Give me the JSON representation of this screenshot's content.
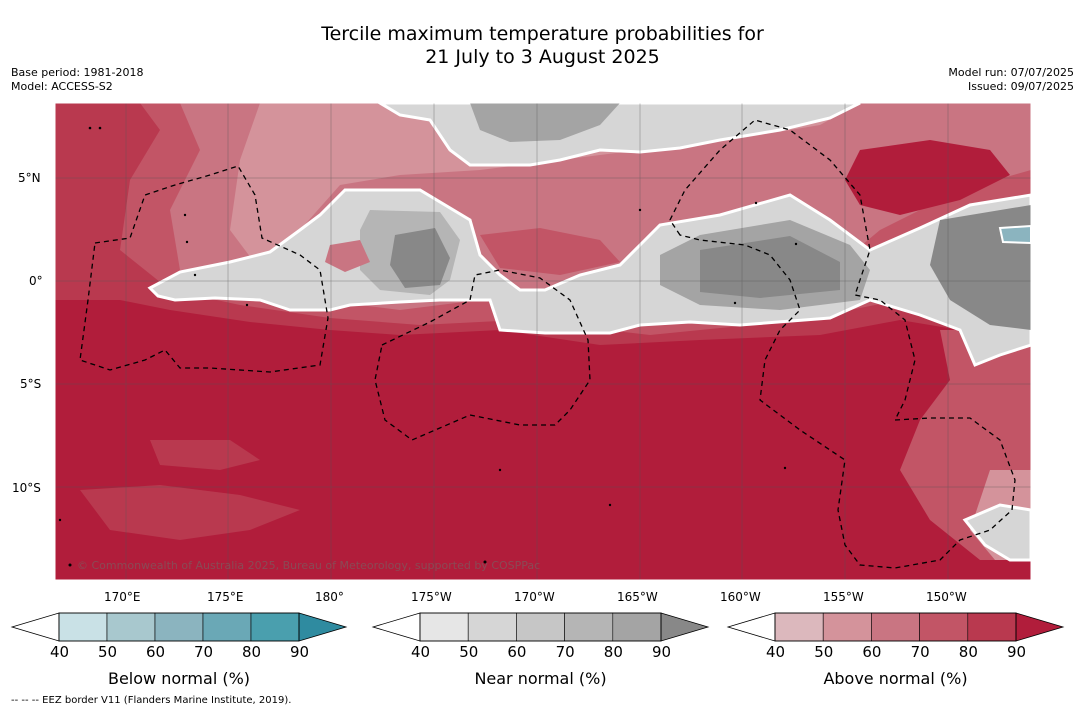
{
  "title": {
    "line1": "Tercile maximum temperature probabilities for",
    "line2": "21 July to 3 August 2025"
  },
  "meta_left": {
    "base_period": "Base period: 1981-2018",
    "model": "Model: ACCESS-S2"
  },
  "meta_right": {
    "model_run": "Model run: 07/07/2025",
    "issued": "Issued: 09/07/2025"
  },
  "map": {
    "lat_labels": [
      "5°N",
      "0°",
      "5°S",
      "10°S"
    ],
    "lon_labels": [
      "170°E",
      "175°E",
      "180°",
      "175°W",
      "170°W",
      "165°W",
      "160°W",
      "155°W",
      "150°W"
    ],
    "copyright": "© Commonwealth of Australia 2025, Bureau of Meteorology, supported by COSPPac",
    "colors": {
      "above": [
        "#dcb8bd",
        "#d4939b",
        "#c97582",
        "#c25566",
        "#b9394f",
        "#b11d3b"
      ],
      "near": [
        "#e6e6e6",
        "#d6d6d6",
        "#c6c6c6",
        "#b5b5b5",
        "#a4a4a4",
        "#888888"
      ],
      "below": [
        "#c9e1e6",
        "#a8c8ce",
        "#8bb4bf",
        "#6aa8b6",
        "#4a9fae",
        "#2f8ba0"
      ]
    }
  },
  "colorbars": [
    {
      "id": "below",
      "title": "Below normal (%)",
      "ticks": [
        "40",
        "50",
        "60",
        "70",
        "80",
        "90"
      ],
      "colors": [
        "#c9e1e6",
        "#a8c8ce",
        "#8bb4bf",
        "#6aa8b6",
        "#4a9fae",
        "#2f8ba0"
      ]
    },
    {
      "id": "near",
      "title": "Near normal (%)",
      "ticks": [
        "40",
        "50",
        "60",
        "70",
        "80",
        "90"
      ],
      "colors": [
        "#e6e6e6",
        "#d6d6d6",
        "#c6c6c6",
        "#b5b5b5",
        "#a4a4a4",
        "#888888"
      ]
    },
    {
      "id": "above",
      "title": "Above normal (%)",
      "ticks": [
        "40",
        "50",
        "60",
        "70",
        "80",
        "90"
      ],
      "colors": [
        "#dcb8bd",
        "#d4939b",
        "#c97582",
        "#c25566",
        "#b9394f",
        "#b11d3b"
      ]
    }
  ],
  "footer": "--  --  -- EEZ border V11 (Flanders Marine Institute, 2019)."
}
